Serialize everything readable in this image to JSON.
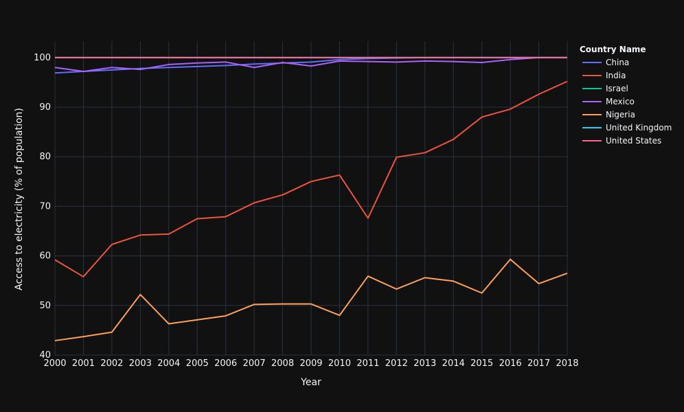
{
  "chart_data": {
    "type": "line",
    "title": "",
    "xlabel": "Year",
    "ylabel": "Access to electricity (% of population)",
    "x": [
      2000,
      2001,
      2002,
      2003,
      2004,
      2005,
      2006,
      2007,
      2008,
      2009,
      2010,
      2011,
      2012,
      2013,
      2014,
      2015,
      2016,
      2017,
      2018
    ],
    "xlim": [
      2000,
      2018
    ],
    "ylim": [
      40,
      103.3
    ],
    "yticks": [
      40,
      50,
      60,
      70,
      80,
      90,
      100
    ],
    "grid": true,
    "legend": {
      "title": "Country Name",
      "placement": "right"
    },
    "background": "#111111",
    "gridColor": "#283442",
    "series": [
      {
        "name": "China",
        "color": "#636efa",
        "values": [
          96.9,
          97.2,
          97.5,
          97.8,
          98.0,
          98.2,
          98.4,
          98.7,
          98.9,
          99.1,
          99.6,
          99.8,
          99.9,
          100,
          100,
          100,
          100,
          100,
          100
        ]
      },
      {
        "name": "India",
        "color": "#EF553B",
        "values": [
          59.2,
          55.8,
          62.3,
          64.2,
          64.4,
          67.5,
          67.9,
          70.7,
          72.3,
          75.0,
          76.3,
          67.6,
          79.9,
          80.8,
          83.5,
          88.0,
          89.6,
          92.6,
          95.2
        ]
      },
      {
        "name": "Israel",
        "color": "#00cc96",
        "values": [
          100,
          100,
          100,
          100,
          100,
          100,
          100,
          100,
          100,
          100,
          100,
          100,
          100,
          100,
          100,
          100,
          100,
          100,
          100
        ]
      },
      {
        "name": "Mexico",
        "color": "#ab63fa",
        "values": [
          98.0,
          97.2,
          98.0,
          97.6,
          98.6,
          98.9,
          99.1,
          98.0,
          99.0,
          98.3,
          99.3,
          99.2,
          99.1,
          99.3,
          99.2,
          99.0,
          99.6,
          100,
          100
        ]
      },
      {
        "name": "Nigeria",
        "color": "#FFA15A",
        "values": [
          42.9,
          43.7,
          44.6,
          52.2,
          46.3,
          47.1,
          47.9,
          50.2,
          50.3,
          50.3,
          48.0,
          55.9,
          53.3,
          55.6,
          54.9,
          52.5,
          59.3,
          54.4,
          56.5
        ]
      },
      {
        "name": "United Kingdom",
        "color": "#19d3f3",
        "values": [
          100,
          100,
          100,
          100,
          100,
          100,
          100,
          100,
          100,
          100,
          100,
          100,
          100,
          100,
          100,
          100,
          100,
          100,
          100
        ]
      },
      {
        "name": "United States",
        "color": "#FF6692",
        "values": [
          100,
          100,
          100,
          100,
          100,
          100,
          100,
          100,
          100,
          100,
          100,
          100,
          100,
          100,
          100,
          100,
          100,
          100,
          100
        ]
      }
    ]
  }
}
